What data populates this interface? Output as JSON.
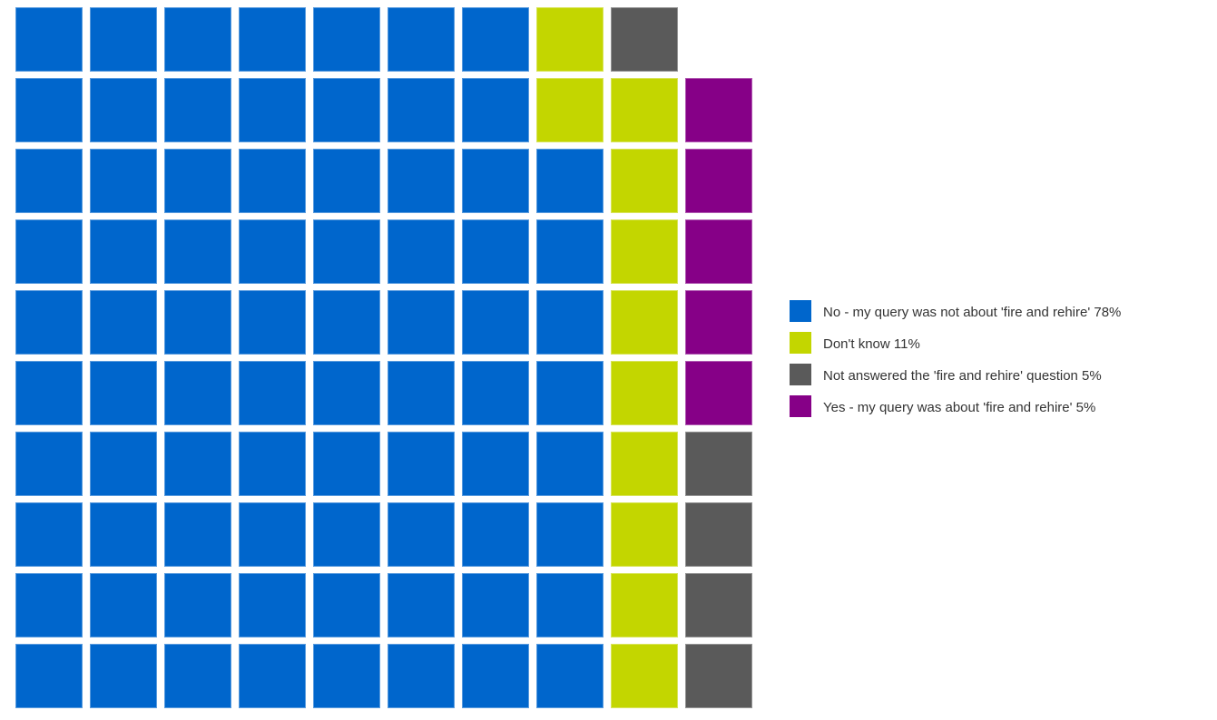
{
  "page": {
    "background_color": "#ffffff"
  },
  "chart_data": {
    "type": "waffle",
    "grid": {
      "rows": 10,
      "columns": 10,
      "cell_unit_percent": 1,
      "filled_cells": 99,
      "empty_cells": 1,
      "fill_order": "columns left-to-right, bottom-to-top"
    },
    "series": [
      {
        "key": "no",
        "label": "No - my query was not about 'fire and rehire'",
        "percent": 78,
        "color": "#0066cc"
      },
      {
        "key": "dont_know",
        "label": "Don't know",
        "percent": 11,
        "color": "#c3d600"
      },
      {
        "key": "not_answered",
        "label": "Not answered the 'fire and rehire' question",
        "percent": 5,
        "color": "#5a5a5a"
      },
      {
        "key": "yes",
        "label": "Yes - my query was about 'fire and rehire'",
        "percent": 5,
        "color": "#860087"
      }
    ],
    "legend": {
      "position": "right",
      "entries": [
        {
          "label": "No - my query was not about 'fire and rehire' 78%",
          "color": "#0066cc"
        },
        {
          "label": "Don't know 11%",
          "color": "#c3d600"
        },
        {
          "label": "Not answered the 'fire and rehire' question 5%",
          "color": "#5a5a5a"
        },
        {
          "label": "Yes - my query was about 'fire and rehire' 5%",
          "color": "#860087"
        }
      ]
    },
    "colors_by_key": {
      "no": "#0066cc",
      "dont_know": "#c3d600",
      "not_answered": "#5a5a5a",
      "yes": "#860087",
      "empty": "transparent"
    },
    "cells_rows_top_to_bottom": [
      [
        "no",
        "no",
        "no",
        "no",
        "no",
        "no",
        "no",
        "dont_know",
        "not_answered",
        "empty"
      ],
      [
        "no",
        "no",
        "no",
        "no",
        "no",
        "no",
        "no",
        "dont_know",
        "dont_know",
        "yes"
      ],
      [
        "no",
        "no",
        "no",
        "no",
        "no",
        "no",
        "no",
        "no",
        "dont_know",
        "yes"
      ],
      [
        "no",
        "no",
        "no",
        "no",
        "no",
        "no",
        "no",
        "no",
        "dont_know",
        "yes"
      ],
      [
        "no",
        "no",
        "no",
        "no",
        "no",
        "no",
        "no",
        "no",
        "dont_know",
        "yes"
      ],
      [
        "no",
        "no",
        "no",
        "no",
        "no",
        "no",
        "no",
        "no",
        "dont_know",
        "yes"
      ],
      [
        "no",
        "no",
        "no",
        "no",
        "no",
        "no",
        "no",
        "no",
        "dont_know",
        "not_answered"
      ],
      [
        "no",
        "no",
        "no",
        "no",
        "no",
        "no",
        "no",
        "no",
        "dont_know",
        "not_answered"
      ],
      [
        "no",
        "no",
        "no",
        "no",
        "no",
        "no",
        "no",
        "no",
        "dont_know",
        "not_answered"
      ],
      [
        "no",
        "no",
        "no",
        "no",
        "no",
        "no",
        "no",
        "no",
        "dont_know",
        "not_answered"
      ]
    ]
  }
}
